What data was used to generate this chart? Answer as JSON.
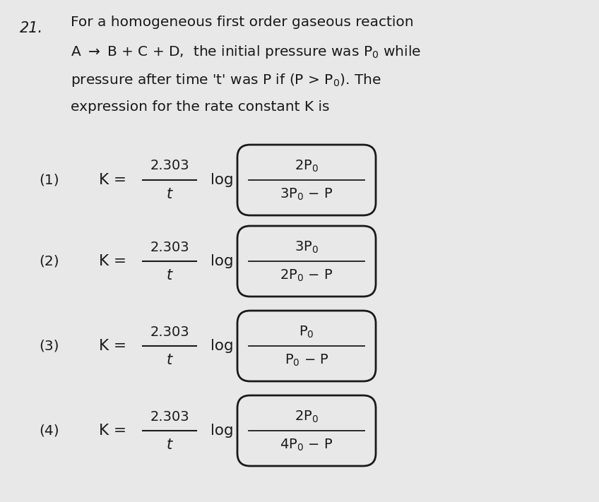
{
  "bg_color": "#e8e8e8",
  "text_color": "#1a1a1a",
  "fig_width": 8.48,
  "fig_height": 7.11,
  "dpi": 100,
  "question_number": "21.",
  "fs_body": 14.5,
  "fs_formula": 15,
  "fs_small": 13,
  "options": [
    {
      "number": "(1)",
      "log_num": "2P$_0$",
      "log_den": "3P$_0$ − P"
    },
    {
      "number": "(2)",
      "log_num": "3P$_0$",
      "log_den": "2P$_0$ − P"
    },
    {
      "number": "(3)",
      "log_num": "P$_0$",
      "log_den": "P$_0$ − P"
    },
    {
      "number": "(4)",
      "log_num": "2P$_0$",
      "log_den": "4P$_0$ − P"
    }
  ]
}
